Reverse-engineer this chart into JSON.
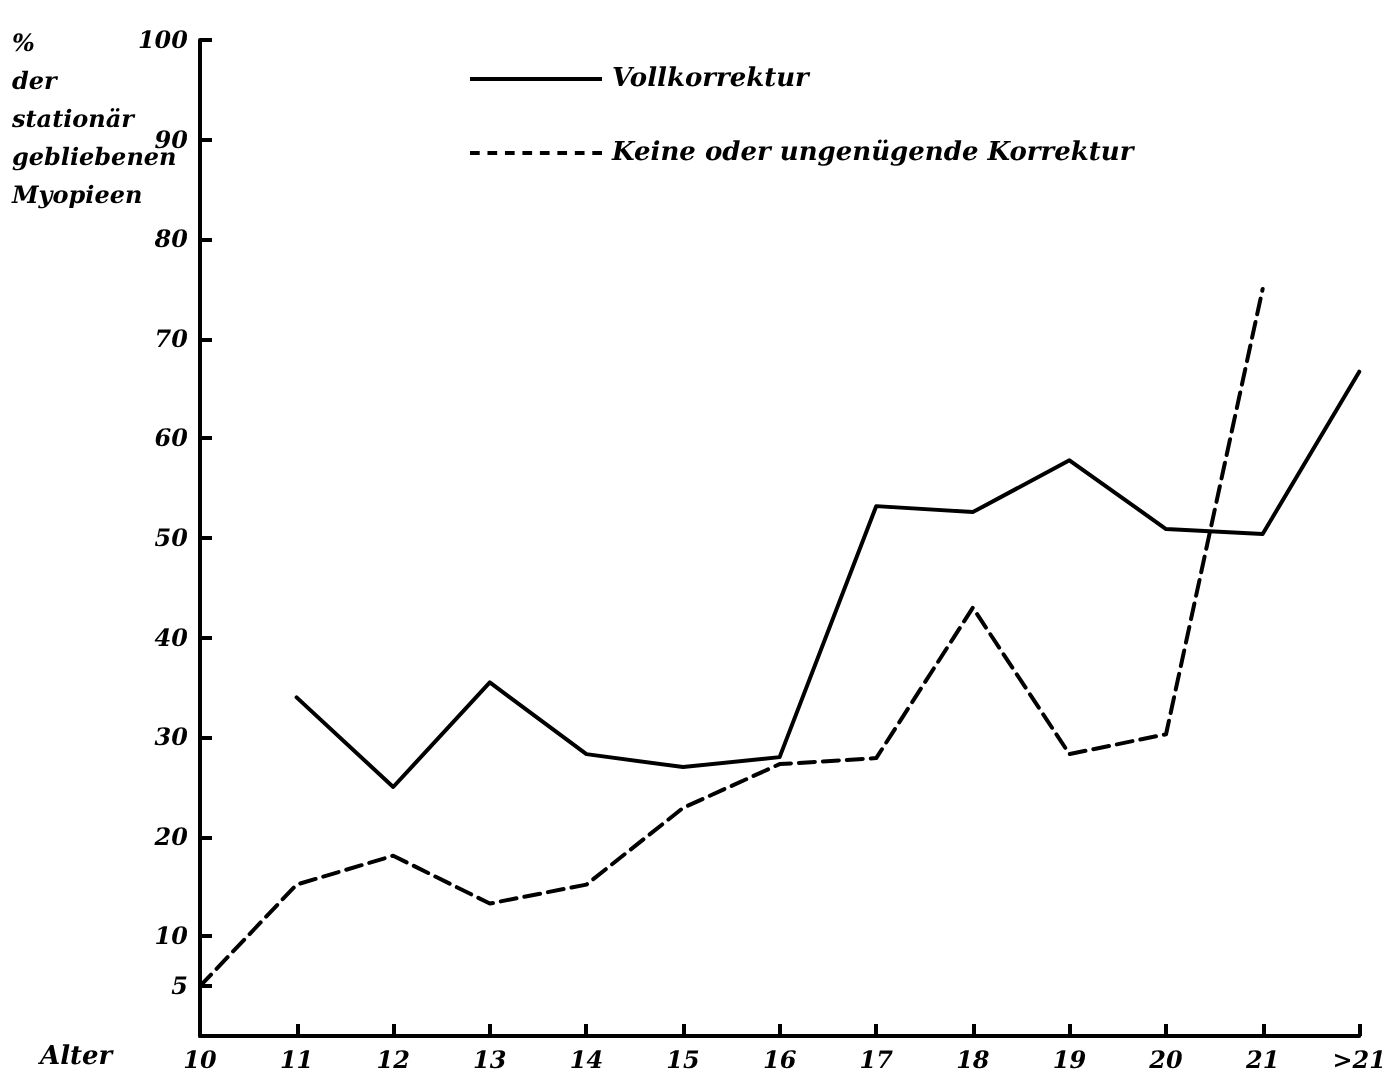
{
  "chart_data": {
    "type": "line",
    "xlabel": "Alter",
    "ylabel": "% der stationär gebliebenen Myopieen",
    "categories": [
      "10",
      "11",
      "12",
      "13",
      "14",
      "15",
      "16",
      "17",
      "18",
      "19",
      "20",
      "21",
      ">21"
    ],
    "series": [
      {
        "name": "Vollkorrektur",
        "color": "#000000",
        "line_style": "solid",
        "values": [
          null,
          34,
          25,
          35.5,
          28.3,
          27,
          28,
          53.2,
          52.6,
          57.8,
          50.9,
          50.4,
          66.7
        ]
      },
      {
        "name": "Keine oder ungenügende Korrektur",
        "color": "#000000",
        "line_style": "dashed",
        "values": [
          5,
          15.2,
          18.1,
          13.3,
          15.2,
          22.9,
          27.3,
          27.9,
          43,
          28.3,
          30.3,
          75,
          null
        ]
      }
    ],
    "ylim": [
      0,
      100
    ],
    "yticks": [
      5,
      10,
      20,
      30,
      40,
      50,
      60,
      70,
      80,
      90,
      100
    ],
    "grid": false,
    "legend": "top",
    "marker": "none"
  }
}
